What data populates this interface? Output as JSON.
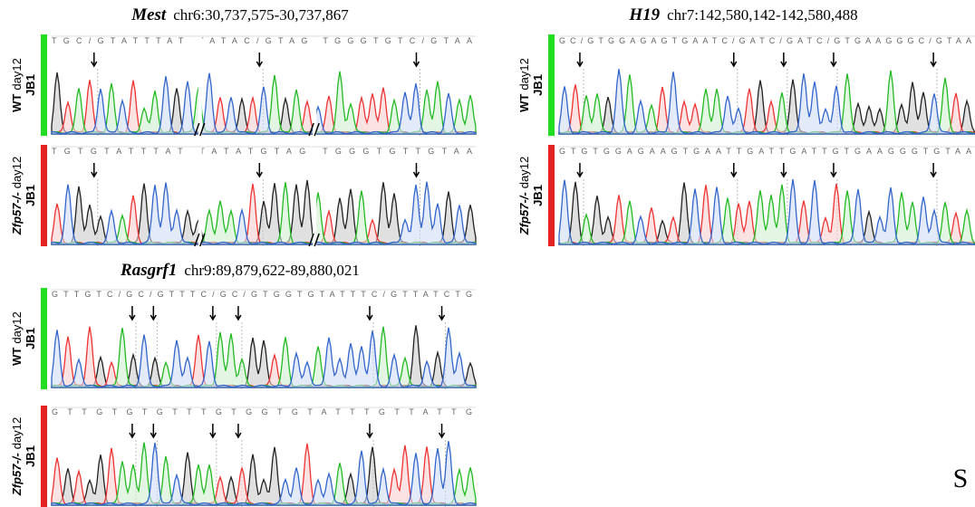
{
  "panels": [
    {
      "gene": "Mest",
      "coords": "chr6:30,737,575-30,737,867",
      "tracks": [
        {
          "genotype": "WT",
          "stage": "day12",
          "line": "JB1",
          "sequence": "TGC/GTATTTAT  TATAC/GTAG  TGGGTGTC/GTAA"
        },
        {
          "genotype": "Zfp57-/-",
          "stage": "day12",
          "line": "JB1",
          "sequence": "TGTGTATTTAT  TATATGTAG  TGGGTGTTGTAA"
        }
      ]
    },
    {
      "gene": "H19",
      "coords": "chr7:142,580,142-142,580,488",
      "tracks": [
        {
          "genotype": "WT",
          "stage": "day12",
          "line": "JB1",
          "sequence": "GC/GTGGAGAGTGAATC/GATC/GATC/GTGAAGGGC/GTAA"
        },
        {
          "genotype": "Zfp57-/-",
          "stage": "day12",
          "line": "JB1",
          "sequence": "GTGTGGAGAAGTGAATTGATTGATTGTGAAGGGTGTAA"
        }
      ]
    },
    {
      "gene": "Rasgrf1",
      "coords": "chr9:89,879,622-89,880,021",
      "tracks": [
        {
          "genotype": "WT",
          "stage": "day12",
          "line": "JB1",
          "sequence": "GTTGTC/GC/GTTTC/GC/GTGGTGTATTTC/GTTATCTG"
        },
        {
          "genotype": "Zfp57-/-",
          "stage": "day12",
          "line": "JB1",
          "sequence": "GTTGTGTGTTTGTGGTGTATTTGTTATTG"
        }
      ]
    }
  ],
  "panel_letter": "S"
}
